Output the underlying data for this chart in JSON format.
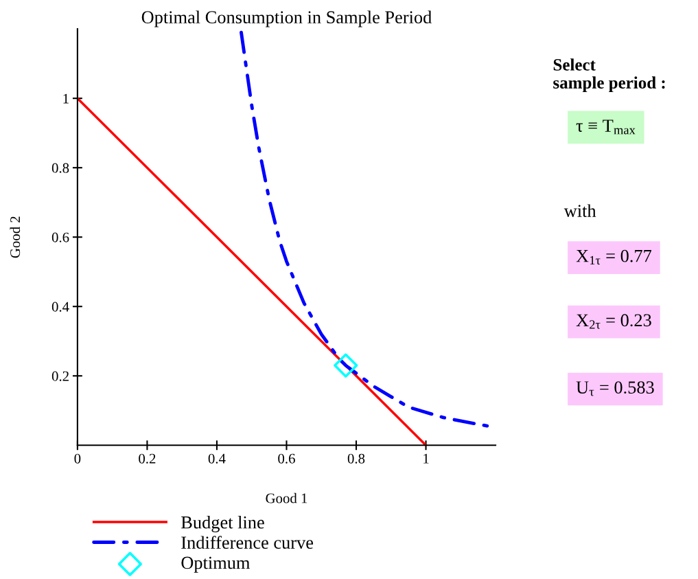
{
  "chart_data": {
    "type": "line",
    "title": "Optimal Consumption in Sample Period",
    "xlabel": "Good 1",
    "ylabel": "Good 2",
    "xlim": [
      0,
      1.2
    ],
    "ylim": [
      0,
      1.2
    ],
    "xticks": [
      0,
      0.2,
      0.4,
      0.6,
      0.8,
      1
    ],
    "yticks": [
      0.2,
      0.4,
      0.6,
      0.8,
      1
    ],
    "grid": false,
    "legend": "bottom",
    "series": [
      {
        "name": "Budget line",
        "color": "#ff0000",
        "line_style": "solid",
        "marker": "none",
        "x": [
          0,
          1
        ],
        "values": [
          1,
          0
        ]
      },
      {
        "name": "Indifference curve",
        "color": "#0000ff",
        "line_style": "dashdot",
        "marker": "none",
        "x": [
          0.47,
          0.48,
          0.5,
          0.52,
          0.55,
          0.58,
          0.6,
          0.65,
          0.7,
          0.75,
          0.77,
          0.85,
          0.9,
          0.95,
          1.05,
          1.1,
          1.18
        ],
        "values": [
          1.19,
          1.12,
          0.98,
          0.86,
          0.71,
          0.59,
          0.53,
          0.41,
          0.32,
          0.25,
          0.23,
          0.17,
          0.14,
          0.11,
          0.08,
          0.07,
          0.055
        ]
      },
      {
        "name": "Optimum",
        "type": "scatter",
        "color": "#00ffff",
        "marker": "diamond",
        "x": [
          0.77
        ],
        "values": [
          0.23
        ]
      }
    ],
    "annotations": [
      "Select\nsample period :",
      "τ ≡ T$_{max}$",
      "with",
      "X$_{1τ}$ = 0.77",
      "X$_{2τ}$ = 0.23",
      "U$_{τ}$ = 0.583"
    ]
  }
}
